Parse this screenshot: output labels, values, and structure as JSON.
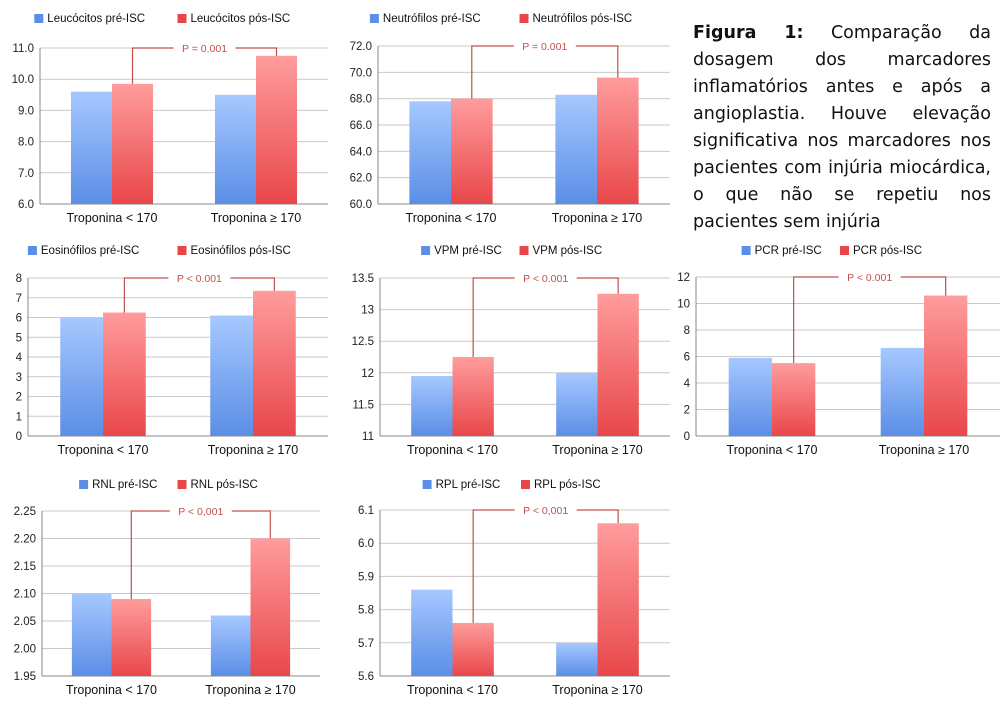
{
  "caption": {
    "label": "Figura 1:",
    "text": "Comparação da dosagem dos marcadores inflamatórios antes e após a angioplastia. Houve elevação significativa nos marcadores nos pacientes com injúria miocárdica, o que não se repetiu nos pacientes sem injúria"
  },
  "colors": {
    "pre": "#5b8ee6",
    "post": "#e8474a",
    "sig": "#c0504d"
  },
  "chart_data": [
    {
      "type": "bar",
      "categories": [
        "Troponina < 170",
        "Troponina ≥ 170"
      ],
      "series": [
        {
          "name": "Leucócitos pré-ISC",
          "values": [
            9.6,
            9.5
          ]
        },
        {
          "name": "Leucócitos pós-ISC",
          "values": [
            9.85,
            10.75
          ]
        }
      ],
      "ylim": [
        6.0,
        11.0
      ],
      "yticks": [
        "6.0",
        "7.0",
        "8.0",
        "9.0",
        "10.0",
        "11.0"
      ],
      "significance": {
        "label": "P = 0.001",
        "from_category": 0,
        "to_category": 1
      },
      "legend": "top",
      "grid": true
    },
    {
      "type": "bar",
      "categories": [
        "Troponina < 170",
        "Troponina ≥ 170"
      ],
      "series": [
        {
          "name": "Neutrófilos pré-ISC",
          "values": [
            67.8,
            68.3
          ]
        },
        {
          "name": "Neutrófilos pós-ISC",
          "values": [
            68.0,
            69.6
          ]
        }
      ],
      "ylim": [
        60.0,
        72.0
      ],
      "yticks": [
        "60.0",
        "62.0",
        "64.0",
        "66.0",
        "68.0",
        "70.0",
        "72.0"
      ],
      "significance": {
        "label": "P = 0.001",
        "from_category": 0,
        "to_category": 1
      },
      "legend": "top",
      "grid": true
    },
    {
      "type": "bar",
      "categories": [
        "Troponina < 170",
        "Troponina ≥ 170"
      ],
      "series": [
        {
          "name": "Eosinófilos pré-ISC",
          "values": [
            6.0,
            6.1
          ]
        },
        {
          "name": "Eosinófilos pós-ISC",
          "values": [
            6.25,
            7.35
          ]
        }
      ],
      "ylim": [
        0,
        8
      ],
      "yticks": [
        "0",
        "1",
        "2",
        "3",
        "4",
        "5",
        "6",
        "7",
        "8"
      ],
      "significance": {
        "label": "P < 0.001",
        "from_category": 0,
        "to_category": 1
      },
      "legend": "top",
      "grid": true
    },
    {
      "type": "bar",
      "categories": [
        "Troponina < 170",
        "Troponina ≥ 170"
      ],
      "series": [
        {
          "name": "VPM pré-ISC",
          "values": [
            11.95,
            12.0
          ]
        },
        {
          "name": "VPM pós-ISC",
          "values": [
            12.25,
            13.25
          ]
        }
      ],
      "ylim": [
        11,
        13.5
      ],
      "yticks": [
        "11",
        "11.5",
        "12",
        "12.5",
        "13",
        "13.5"
      ],
      "significance": {
        "label": "P < 0.001",
        "from_category": 0,
        "to_category": 1
      },
      "legend": "top",
      "grid": true
    },
    {
      "type": "bar",
      "categories": [
        "Troponina < 170",
        "Troponina ≥ 170"
      ],
      "series": [
        {
          "name": "PCR pré-ISC",
          "values": [
            5.9,
            6.65
          ]
        },
        {
          "name": "PCR pós-ISC",
          "values": [
            5.5,
            10.6
          ]
        }
      ],
      "ylim": [
        0,
        12
      ],
      "yticks": [
        "0",
        "2",
        "4",
        "6",
        "8",
        "10",
        "12"
      ],
      "significance": {
        "label": "P < 0.001",
        "from_category": 0,
        "to_category": 1
      },
      "legend": "top",
      "grid": true
    },
    {
      "type": "bar",
      "categories": [
        "Troponina < 170",
        "Troponina ≥ 170"
      ],
      "series": [
        {
          "name": "RNL pré-ISC",
          "values": [
            2.1,
            2.06
          ]
        },
        {
          "name": "RNL pós-ISC",
          "values": [
            2.09,
            2.2
          ]
        }
      ],
      "ylim": [
        1.95,
        2.25
      ],
      "yticks": [
        "1.95",
        "2.00",
        "2.05",
        "2.10",
        "2.15",
        "2.20",
        "2.25"
      ],
      "significance": {
        "label": "P < 0,001",
        "from_category": 0,
        "to_category": 1
      },
      "legend": "top",
      "grid": true
    },
    {
      "type": "bar",
      "categories": [
        "Troponina < 170",
        "Troponina ≥ 170"
      ],
      "series": [
        {
          "name": "RPL pré-ISC",
          "values": [
            5.86,
            5.7
          ]
        },
        {
          "name": "RPL pós-ISC",
          "values": [
            5.76,
            6.06
          ]
        }
      ],
      "ylim": [
        5.6,
        6.1
      ],
      "yticks": [
        "5.6",
        "5.7",
        "5.8",
        "5.9",
        "6.0",
        "6.1"
      ],
      "significance": {
        "label": "P < 0,001",
        "from_category": 0,
        "to_category": 1
      },
      "legend": "top",
      "grid": true
    }
  ]
}
